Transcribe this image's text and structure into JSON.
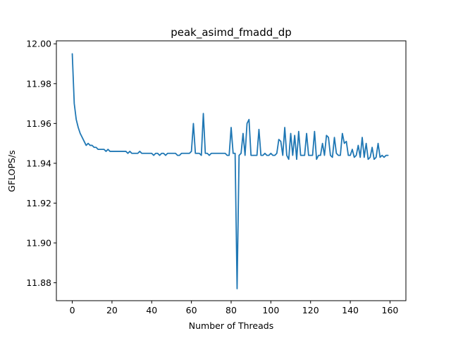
{
  "chart_data": {
    "type": "line",
    "title": "peak_asimd_fmadd_dp",
    "xlabel": "Number of Threads",
    "ylabel": "GFLOPS/s",
    "xlim": [
      -8,
      168
    ],
    "ylim": [
      11.871,
      12.0015
    ],
    "xticks": [
      0,
      20,
      40,
      60,
      80,
      100,
      120,
      140,
      160
    ],
    "yticks": [
      11.88,
      11.9,
      11.92,
      11.94,
      11.96,
      11.98,
      12.0
    ],
    "ytick_labels": [
      "11.88",
      "11.90",
      "11.92",
      "11.94",
      "11.96",
      "11.98",
      "12.00"
    ],
    "grid": false,
    "line_color": "#1f77b4",
    "series": [
      {
        "x_start": 0,
        "x_step": 1,
        "values": [
          11.995,
          11.97,
          11.962,
          11.958,
          11.955,
          11.953,
          11.951,
          11.949,
          11.95,
          11.949,
          11.949,
          11.948,
          11.948,
          11.947,
          11.947,
          11.947,
          11.947,
          11.946,
          11.947,
          11.946,
          11.946,
          11.946,
          11.946,
          11.946,
          11.946,
          11.946,
          11.946,
          11.946,
          11.945,
          11.946,
          11.945,
          11.945,
          11.945,
          11.945,
          11.946,
          11.945,
          11.945,
          11.945,
          11.945,
          11.945,
          11.945,
          11.944,
          11.945,
          11.945,
          11.944,
          11.945,
          11.945,
          11.944,
          11.945,
          11.945,
          11.945,
          11.945,
          11.945,
          11.944,
          11.944,
          11.945,
          11.945,
          11.945,
          11.945,
          11.945,
          11.946,
          11.96,
          11.945,
          11.945,
          11.945,
          11.944,
          11.965,
          11.945,
          11.945,
          11.944,
          11.945,
          11.945,
          11.945,
          11.945,
          11.945,
          11.945,
          11.945,
          11.945,
          11.944,
          11.944,
          11.958,
          11.945,
          11.945,
          11.877,
          11.944,
          11.945,
          11.955,
          11.944,
          11.96,
          11.962,
          11.944,
          11.944,
          11.944,
          11.944,
          11.957,
          11.944,
          11.944,
          11.945,
          11.944,
          11.944,
          11.945,
          11.944,
          11.944,
          11.945,
          11.952,
          11.951,
          11.944,
          11.958,
          11.944,
          11.942,
          11.955,
          11.944,
          11.954,
          11.942,
          11.956,
          11.944,
          11.944,
          11.944,
          11.955,
          11.944,
          11.944,
          11.944,
          11.956,
          11.942,
          11.944,
          11.944,
          11.95,
          11.944,
          11.954,
          11.953,
          11.944,
          11.943,
          11.953,
          11.945,
          11.944,
          11.944,
          11.955,
          11.95,
          11.951,
          11.944,
          11.944,
          11.947,
          11.943,
          11.944,
          11.949,
          11.943,
          11.953,
          11.943,
          11.95,
          11.942,
          11.943,
          11.948,
          11.942,
          11.943,
          11.95,
          11.943,
          11.944,
          11.943,
          11.944,
          11.944
        ]
      }
    ]
  }
}
